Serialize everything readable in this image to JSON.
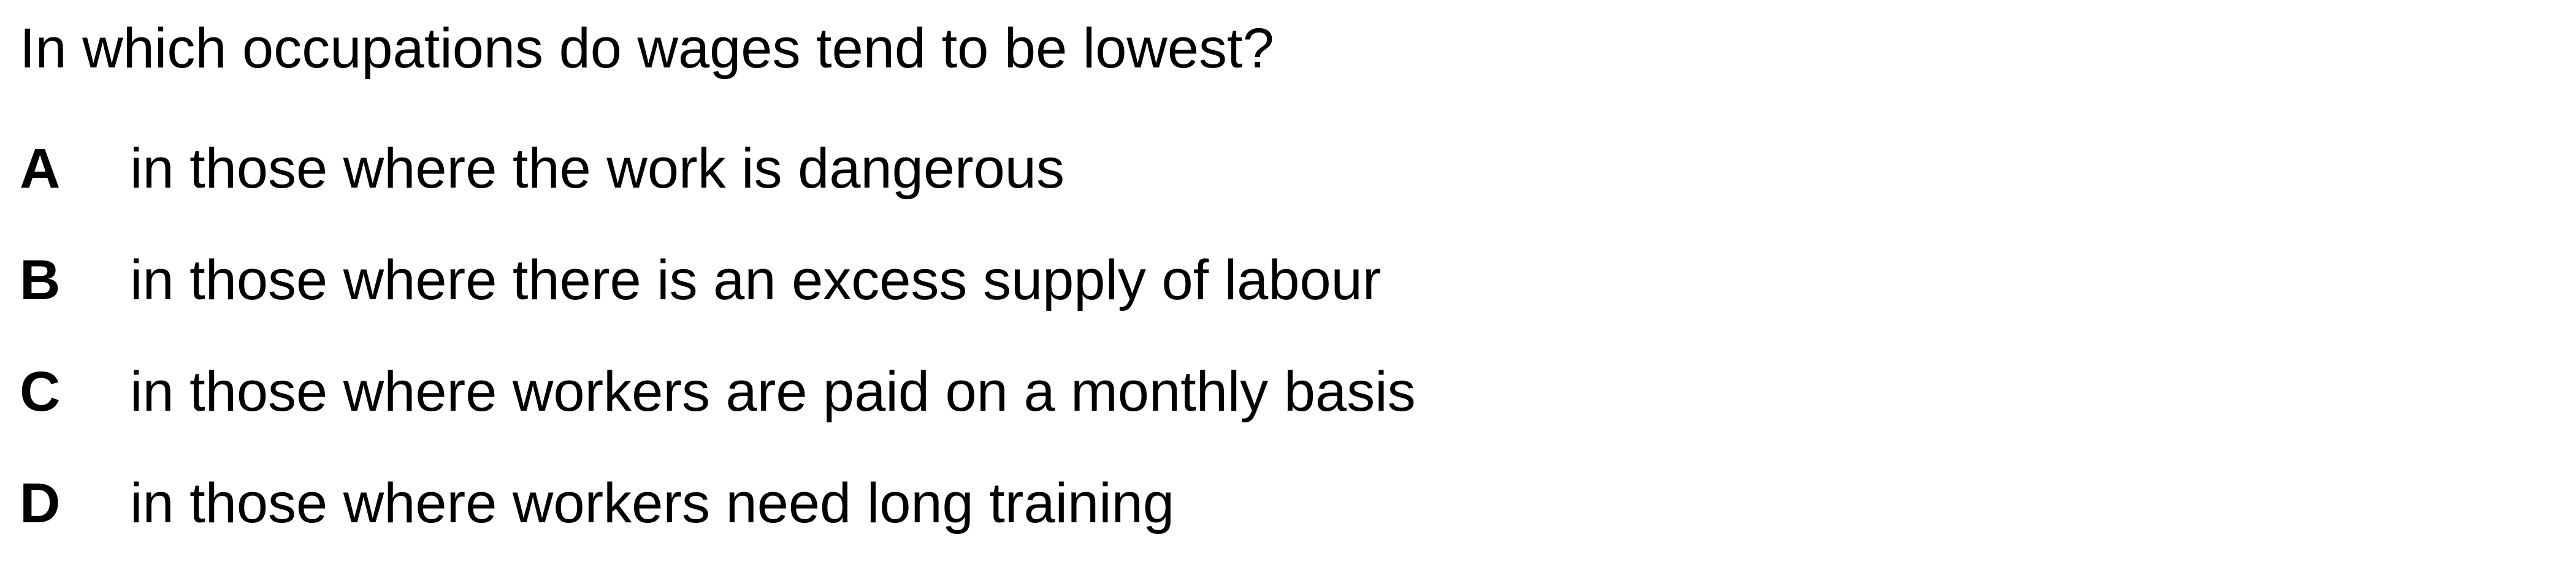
{
  "question": {
    "text": "In which occupations do wages tend to be lowest?"
  },
  "options": [
    {
      "letter": "A",
      "text": "in those where the work is dangerous"
    },
    {
      "letter": "B",
      "text": "in those where there is an excess supply of labour"
    },
    {
      "letter": "C",
      "text": "in those where workers are paid on a monthly basis"
    },
    {
      "letter": "D",
      "text": "in those where workers need long training"
    }
  ]
}
